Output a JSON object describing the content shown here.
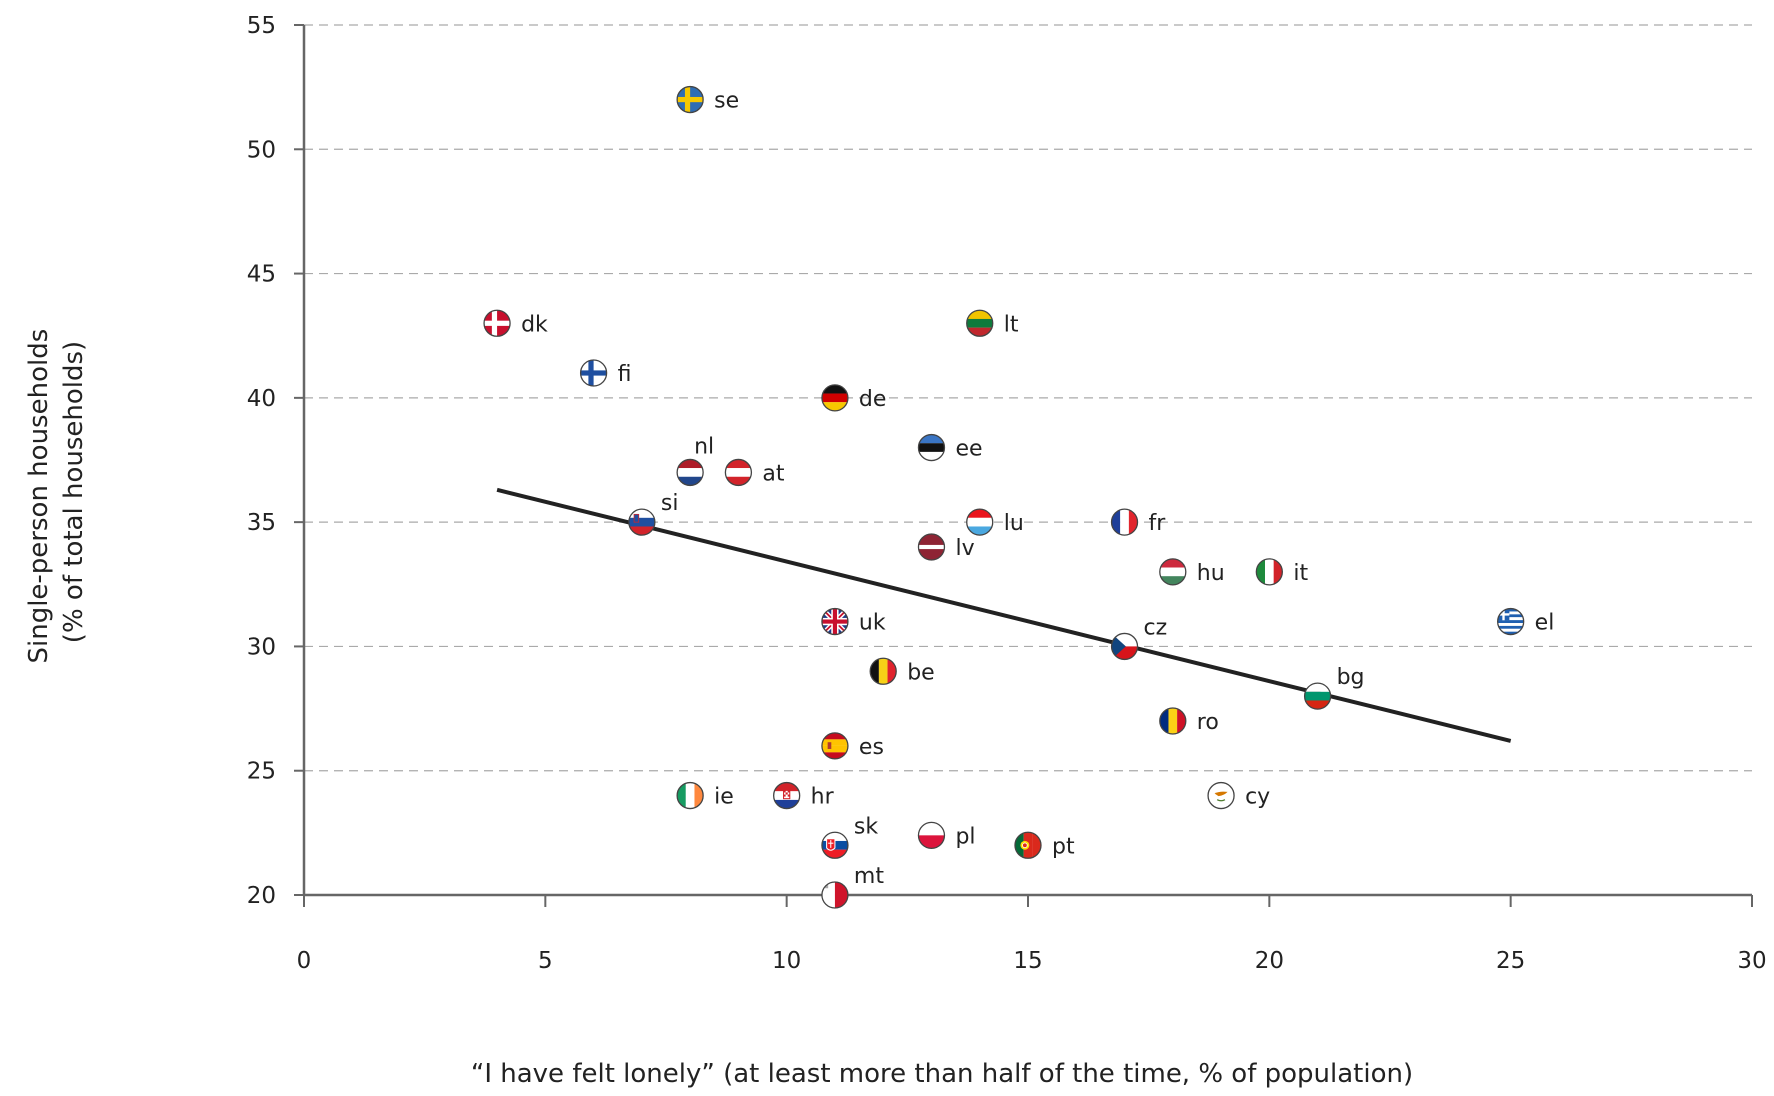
{
  "chart_data": {
    "type": "scatter",
    "title": "",
    "xlabel": "“I have felt lonely” (at least more than half of the time, % of population)",
    "ylabel_line1": "Single-person households",
    "ylabel_line2": "(% of total households)",
    "xlim": [
      0,
      30
    ],
    "ylim": [
      20,
      55
    ],
    "xticks": [
      0,
      5,
      10,
      15,
      20,
      25,
      30
    ],
    "yticks": [
      20,
      25,
      30,
      35,
      40,
      45,
      50,
      55
    ],
    "grid": "horizontal dashed",
    "legend": "none",
    "trendline": {
      "x": [
        4,
        25
      ],
      "y": [
        36.3,
        26.2
      ]
    },
    "points": [
      {
        "label": "se",
        "x": 8,
        "y": 52,
        "flag": "sweden",
        "labelPos": "right"
      },
      {
        "label": "dk",
        "x": 4,
        "y": 43,
        "flag": "denmark",
        "labelPos": "right"
      },
      {
        "label": "lt",
        "x": 14,
        "y": 43,
        "flag": "lithuania",
        "labelPos": "right"
      },
      {
        "label": "fi",
        "x": 6,
        "y": 41,
        "flag": "finland",
        "labelPos": "right"
      },
      {
        "label": "de",
        "x": 11,
        "y": 40,
        "flag": "germany",
        "labelPos": "right"
      },
      {
        "label": "ee",
        "x": 13,
        "y": 38,
        "flag": "estonia",
        "labelPos": "right"
      },
      {
        "label": "nl",
        "x": 8,
        "y": 37,
        "flag": "netherlands",
        "labelPos": "above"
      },
      {
        "label": "at",
        "x": 9,
        "y": 37,
        "flag": "austria",
        "labelPos": "right"
      },
      {
        "label": "si",
        "x": 7,
        "y": 35,
        "flag": "slovenia",
        "labelPos": "above-right"
      },
      {
        "label": "lu",
        "x": 14,
        "y": 35,
        "flag": "luxembourg",
        "labelPos": "right"
      },
      {
        "label": "fr",
        "x": 17,
        "y": 35,
        "flag": "france",
        "labelPos": "right"
      },
      {
        "label": "lv",
        "x": 13,
        "y": 34,
        "flag": "latvia",
        "labelPos": "right"
      },
      {
        "label": "hu",
        "x": 18,
        "y": 33,
        "flag": "hungary",
        "labelPos": "right"
      },
      {
        "label": "it",
        "x": 20,
        "y": 33,
        "flag": "italy",
        "labelPos": "right"
      },
      {
        "label": "uk",
        "x": 11,
        "y": 31,
        "flag": "uk",
        "labelPos": "right"
      },
      {
        "label": "el",
        "x": 25,
        "y": 31,
        "flag": "greece",
        "labelPos": "right"
      },
      {
        "label": "cz",
        "x": 17,
        "y": 30,
        "flag": "czechia",
        "labelPos": "above-right"
      },
      {
        "label": "be",
        "x": 12,
        "y": 29,
        "flag": "belgium",
        "labelPos": "right"
      },
      {
        "label": "bg",
        "x": 21,
        "y": 28,
        "flag": "bulgaria",
        "labelPos": "above-right"
      },
      {
        "label": "ro",
        "x": 18,
        "y": 27,
        "flag": "romania",
        "labelPos": "right"
      },
      {
        "label": "es",
        "x": 11,
        "y": 26,
        "flag": "spain",
        "labelPos": "right"
      },
      {
        "label": "ie",
        "x": 8,
        "y": 24,
        "flag": "ireland",
        "labelPos": "right"
      },
      {
        "label": "hr",
        "x": 10,
        "y": 24,
        "flag": "croatia",
        "labelPos": "right"
      },
      {
        "label": "cy",
        "x": 19,
        "y": 24,
        "flag": "cyprus",
        "labelPos": "right"
      },
      {
        "label": "sk",
        "x": 11,
        "y": 22,
        "flag": "slovakia",
        "labelPos": "above-right"
      },
      {
        "label": "pl",
        "x": 13,
        "y": 22.4,
        "flag": "poland",
        "labelPos": "right"
      },
      {
        "label": "pt",
        "x": 15,
        "y": 22,
        "flag": "portugal",
        "labelPos": "right"
      },
      {
        "label": "mt",
        "x": 11,
        "y": 20,
        "flag": "malta",
        "labelPos": "above-right"
      }
    ]
  },
  "colors": {
    "axis": "#666666",
    "grid": "#aaaaaa",
    "trendline": "#222222",
    "text": "#222222"
  }
}
